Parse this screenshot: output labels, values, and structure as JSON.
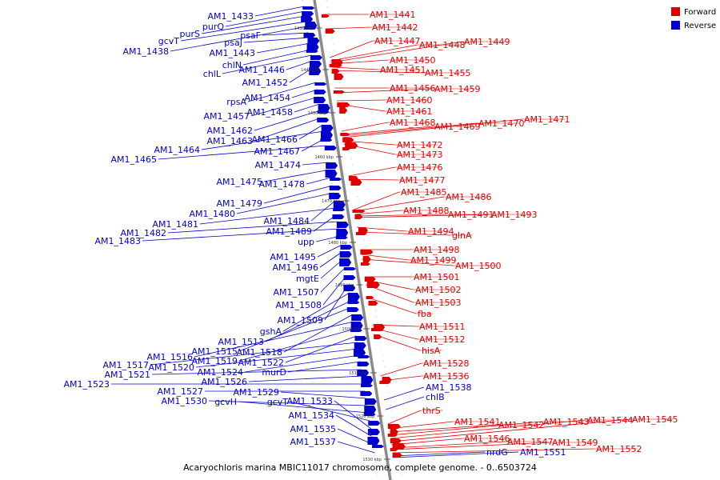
{
  "colors": {
    "forward": "#e00000",
    "reverse": "#0000cc",
    "axis": "#7a7a7a"
  },
  "legend": {
    "forward": "Forward",
    "reverse": "Reverse"
  },
  "caption": "Acaryochloris marina MBIC11017 chromosome, complete genome. - 0..6503724",
  "ticks": [
    "1430 kbp",
    "1440 kbp",
    "1450 kbp",
    "1460 kbp",
    "1470 kbp",
    "1480 kbp",
    "1490 kbp",
    "1500 kbp",
    "1510 kbp",
    "1520 kbp",
    "1530 kbp"
  ],
  "forward_labels": [
    "AM1_1441",
    "AM1_1442",
    "AM1_1447",
    "AM1_1448",
    "AM1_1449",
    "AM1_1450",
    "AM1_1451",
    "AM1_1455",
    "AM1_1456",
    "AM1_1459",
    "AM1_1460",
    "AM1_1461",
    "AM1_1468",
    "AM1_1469",
    "AM1_1470",
    "AM1_1471",
    "AM1_1472",
    "AM1_1473",
    "AM1_1476",
    "AM1_1477",
    "AM1_1485",
    "AM1_1486",
    "AM1_1488",
    "AM1_1491",
    "AM1_1493",
    "AM1_1494",
    "glnA",
    "AM1_1498",
    "AM1_1499",
    "AM1_1500",
    "AM1_1501",
    "AM1_1502",
    "AM1_1503",
    "fba",
    "AM1_1511",
    "AM1_1512",
    "hisA",
    "AM1_1528",
    "AM1_1536",
    "thrS",
    "AM1_1541",
    "AM1_1542",
    "AM1_1543",
    "AM1_1544",
    "AM1_1545",
    "AM1_1546",
    "AM1_1547",
    "AM1_1549",
    "AM1_1552"
  ],
  "reverse_labels": [
    "AM1_1433",
    "purQ",
    "purS",
    "gcvT",
    "AM1_1438",
    "psaF",
    "psaJ",
    "AM1_1443",
    "chlN",
    "chlL",
    "AM1_1446",
    "AM1_1452",
    "rpsA",
    "AM1_1454",
    "AM1_1457",
    "AM1_1458",
    "AM1_1462",
    "AM1_1463",
    "AM1_1466",
    "AM1_1464",
    "AM1_1467",
    "AM1_1465",
    "AM1_1474",
    "AM1_1475",
    "AM1_1478",
    "AM1_1479",
    "AM1_1480",
    "AM1_1484",
    "AM1_1481",
    "AM1_1489",
    "AM1_1482",
    "AM1_1483",
    "upp",
    "AM1_1495",
    "AM1_1496",
    "mgtE",
    "AM1_1507",
    "AM1_1508",
    "AM1_1509",
    "gshA",
    "AM1_1513",
    "AM1_1515",
    "AM1_1518",
    "AM1_1516",
    "AM1_1519",
    "AM1_1522",
    "AM1_1517",
    "AM1_1520",
    "AM1_1524",
    "murD",
    "AM1_1521",
    "AM1_1526",
    "AM1_1523",
    "AM1_1527",
    "AM1_1529",
    "AM1_1530",
    "gcvH",
    "gcvT",
    "AM1_1533",
    "AM1_1534",
    "AM1_1535",
    "AM1_1537",
    "AM1_1538",
    "chlB",
    "nrdG",
    "AM1_1551"
  ]
}
